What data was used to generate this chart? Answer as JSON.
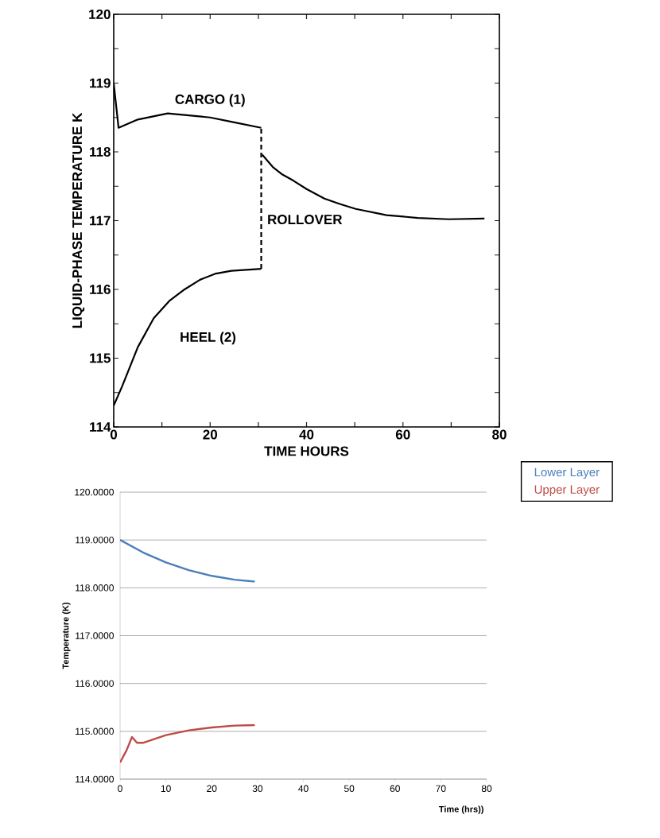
{
  "chart_data": [
    {
      "type": "line",
      "xlabel": "TIME    HOURS",
      "ylabel": "LIQUID-PHASE   TEMPERATURE   K",
      "xlim": [
        0,
        80
      ],
      "ylim": [
        114,
        120
      ],
      "xticks": [
        0,
        {
          "value": 10,
          "label": null
        },
        20,
        {
          "value": 30,
          "label": null
        },
        40,
        {
          "value": 50,
          "label": null
        },
        60,
        {
          "value": 70,
          "label": null
        },
        80
      ],
      "yticks": [
        114,
        {
          "value": 114.5,
          "label": null
        },
        115,
        {
          "value": 115.5,
          "label": null
        },
        116,
        {
          "value": 116.5,
          "label": null
        },
        117,
        {
          "value": 117.5,
          "label": null
        },
        118,
        {
          "value": 118.5,
          "label": null
        },
        119,
        {
          "value": 119.5,
          "label": null
        },
        120
      ],
      "grid": false,
      "legend": false,
      "marker": "none",
      "series": [
        {
          "name": "CARGO (1)",
          "color": "#000000",
          "line_style": "solid",
          "x": [
            0,
            1,
            5,
            11.2,
            20,
            25,
            30.6
          ],
          "values": [
            119.0,
            118.35,
            118.47,
            118.56,
            118.5,
            118.43,
            118.35
          ]
        },
        {
          "color": "#000000",
          "line_style": "solid",
          "x": [
            30.8,
            33,
            35,
            37.3,
            40,
            43.7,
            47,
            50.2,
            56.6,
            63.1,
            69.5,
            76.9
          ],
          "values": [
            117.96,
            117.78,
            117.67,
            117.58,
            117.46,
            117.32,
            117.24,
            117.17,
            117.08,
            117.04,
            117.02,
            117.03
          ]
        },
        {
          "name": "HEEL (2)",
          "color": "#000000",
          "line_style": "solid",
          "x": [
            0,
            1.8,
            5,
            8.3,
            11.5,
            14.7,
            17.9,
            21.2,
            24.4,
            30.6
          ],
          "values": [
            114.31,
            114.6,
            115.16,
            115.58,
            115.83,
            116.0,
            116.14,
            116.23,
            116.27,
            116.3
          ]
        },
        {
          "name": "ROLLOVER",
          "color": "#000000",
          "line_style": "dashed",
          "x": [
            30.6,
            30.6
          ],
          "values": [
            116.3,
            118.35
          ]
        }
      ]
    },
    {
      "type": "line",
      "xlabel": "Time (hrs))",
      "ylabel": "Temperature (K)",
      "xlim": [
        0,
        80
      ],
      "ylim": [
        114,
        120
      ],
      "xticks": [
        0,
        10,
        20,
        30,
        40,
        50,
        60,
        70,
        80
      ],
      "yticks": [
        {
          "value": 114,
          "label": "114.0000"
        },
        {
          "value": 115,
          "label": "115.0000"
        },
        {
          "value": 116,
          "label": "116.0000"
        },
        {
          "value": 117,
          "label": "117.0000"
        },
        {
          "value": 118,
          "label": "118.0000"
        },
        {
          "value": 119,
          "label": "119.0000"
        },
        {
          "value": 120,
          "label": "120.0000"
        }
      ],
      "grid": "y",
      "legend": "top right",
      "marker": "none",
      "series": [
        {
          "name": "Lower Layer",
          "color": "#4a7ebb",
          "x": [
            0,
            5,
            10,
            15,
            20,
            25,
            29.4
          ],
          "values": [
            119.0,
            118.74,
            118.53,
            118.37,
            118.25,
            118.17,
            118.13
          ]
        },
        {
          "name": "Upper Layer",
          "color": "#be4b48",
          "x": [
            0,
            1.4,
            2.6,
            3.7,
            5,
            10,
            15,
            20,
            25,
            29.4
          ],
          "values": [
            114.35,
            114.6,
            114.88,
            114.76,
            114.76,
            114.92,
            115.02,
            115.08,
            115.12,
            115.13
          ]
        }
      ]
    }
  ]
}
